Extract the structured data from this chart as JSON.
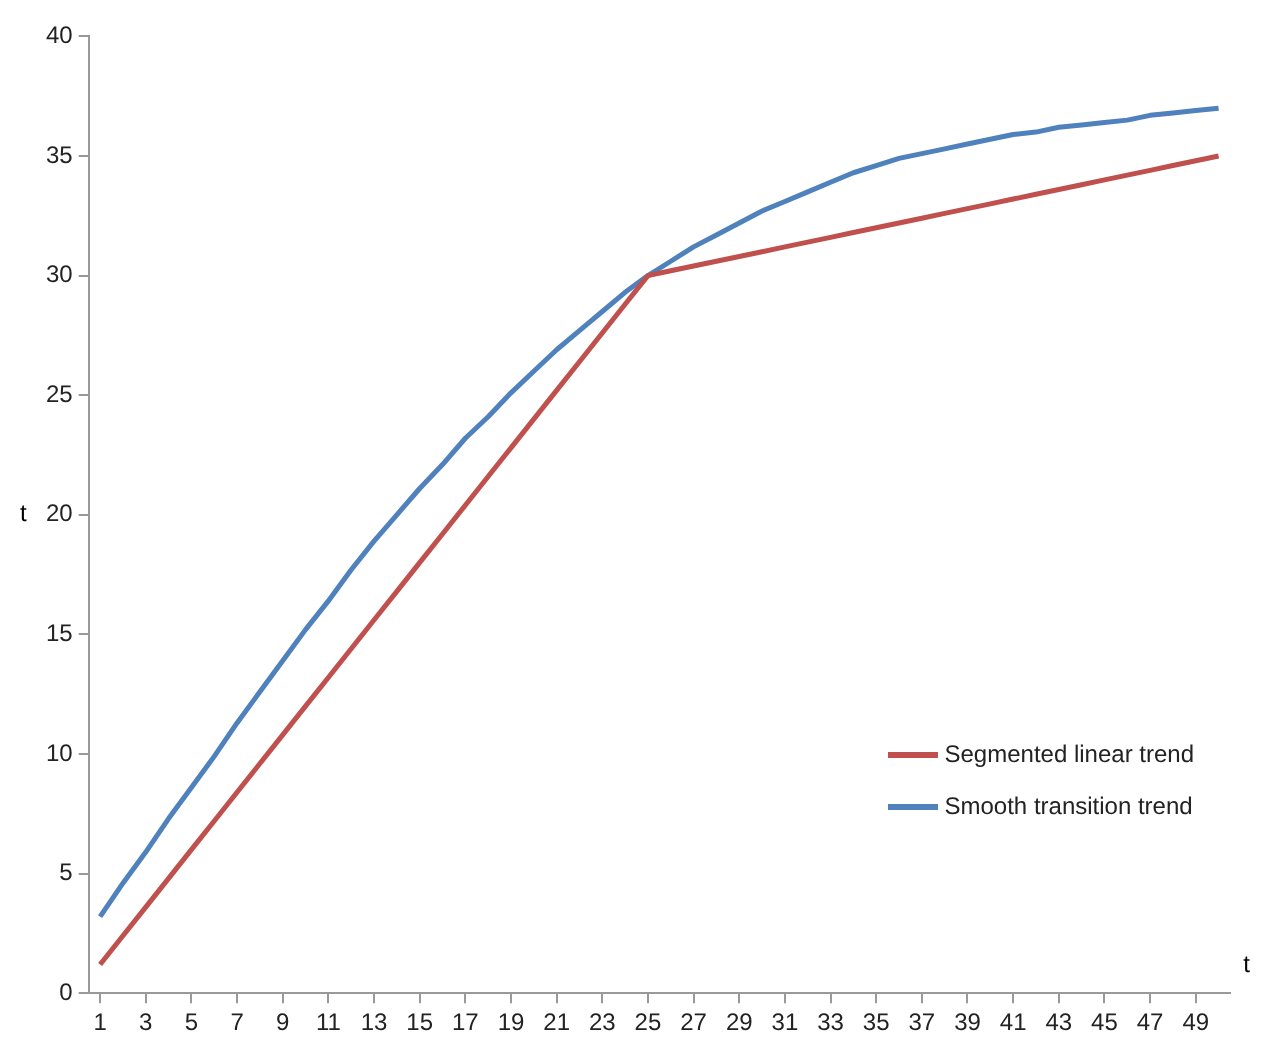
{
  "chart_data": {
    "type": "line",
    "xlabel": "t",
    "ylabel": "t",
    "x": [
      1,
      2,
      3,
      4,
      5,
      6,
      7,
      8,
      9,
      10,
      11,
      12,
      13,
      14,
      15,
      16,
      17,
      18,
      19,
      20,
      21,
      22,
      23,
      24,
      25,
      26,
      27,
      28,
      29,
      30,
      31,
      32,
      33,
      34,
      35,
      36,
      37,
      38,
      39,
      40,
      41,
      42,
      43,
      44,
      45,
      46,
      47,
      48,
      49,
      50
    ],
    "series": [
      {
        "name": "Segmented linear trend",
        "color": "#c0504d",
        "values": [
          1.2,
          2.4,
          3.6,
          4.8,
          6.0,
          7.2,
          8.4,
          9.6,
          10.8,
          12.0,
          13.2,
          14.4,
          15.6,
          16.8,
          18.0,
          19.2,
          20.4,
          21.6,
          22.8,
          24.0,
          25.2,
          26.4,
          27.6,
          28.8,
          30.0,
          30.2,
          30.4,
          30.6,
          30.8,
          31.0,
          31.2,
          31.4,
          31.6,
          31.8,
          32.0,
          32.2,
          32.4,
          32.6,
          32.8,
          33.0,
          33.2,
          33.4,
          33.6,
          33.8,
          34.0,
          34.2,
          34.4,
          34.6,
          34.8,
          35.0
        ]
      },
      {
        "name": "Smooth transition trend",
        "color": "#4f81bd",
        "values": [
          3.2,
          4.6,
          5.9,
          7.3,
          8.6,
          9.9,
          11.3,
          12.6,
          13.9,
          15.2,
          16.4,
          17.7,
          18.9,
          20.0,
          21.1,
          22.1,
          23.2,
          24.1,
          25.1,
          26.0,
          26.9,
          27.7,
          28.5,
          29.3,
          30.0,
          30.6,
          31.2,
          31.7,
          32.2,
          32.7,
          33.1,
          33.5,
          33.9,
          34.3,
          34.6,
          34.9,
          35.1,
          35.3,
          35.5,
          35.7,
          35.9,
          36.0,
          36.2,
          36.3,
          36.4,
          36.5,
          36.7,
          36.8,
          36.9,
          37.0
        ]
      }
    ],
    "xlim": [
      0.5,
      50.5
    ],
    "xticks": [
      1,
      3,
      5,
      7,
      9,
      11,
      13,
      15,
      17,
      19,
      21,
      23,
      25,
      27,
      29,
      31,
      33,
      35,
      37,
      39,
      41,
      43,
      45,
      47,
      49
    ],
    "ylim": [
      0,
      40
    ],
    "yticks": [
      0,
      5,
      10,
      15,
      20,
      25,
      30,
      35,
      40
    ],
    "grid": false,
    "legend": "bottom right",
    "marker": "none",
    "line_style": "solid"
  }
}
